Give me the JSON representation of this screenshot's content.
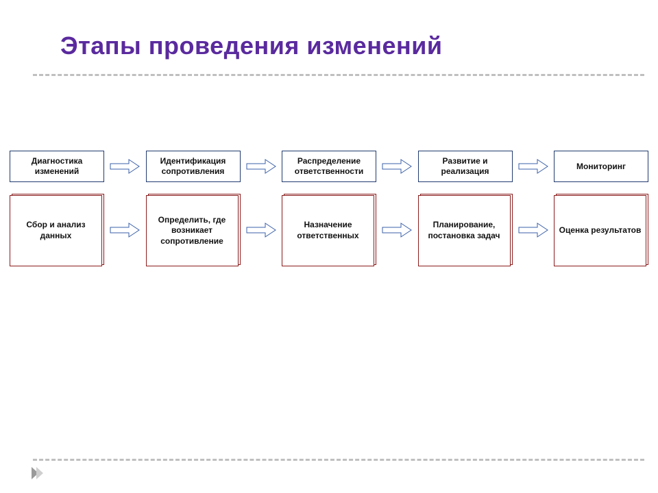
{
  "title": {
    "text": "Этапы проведения изменений",
    "color": "#5a2a9e",
    "fontsize": 36
  },
  "rule": {
    "color": "#bfbfbf"
  },
  "row_top": {
    "border_color": "#1f3a6e",
    "text_color": "#111111",
    "boxes": [
      "Диагностика изменений",
      "Идентификация сопротивления",
      "Распределение ответственности",
      "Развитие и реализация",
      "Мониторинг"
    ]
  },
  "row_bottom": {
    "border_color": "#8a1a1a",
    "text_color": "#111111",
    "boxes": [
      "Сбор и анализ данных",
      "Определить, где возникает сопротивление",
      "Назначение ответственных",
      "Планирование, постановка задач",
      "Оценка результатов"
    ]
  },
  "arrow": {
    "stroke": "#3a5fa8",
    "fill": "#ffffff",
    "stroke_width": 1
  },
  "footer_chevron": {
    "fill": "#9a9a9a"
  },
  "background": "#ffffff"
}
